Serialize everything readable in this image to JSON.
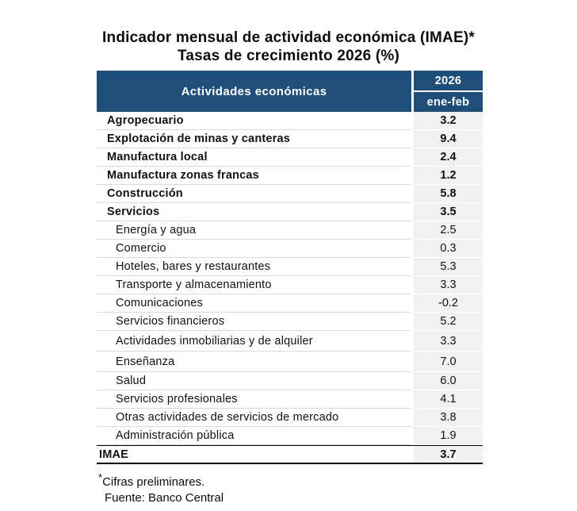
{
  "title": {
    "line1": "Indicador mensual de actividad económica (IMAE)*",
    "line2": "Tasas de crecimiento 2026 (%)"
  },
  "table": {
    "header": {
      "activities": "Actividades económicas",
      "year": "2026",
      "period": "ene-feb"
    },
    "rows": [
      {
        "label": "Agropecuario",
        "value": "3.2",
        "level": "main"
      },
      {
        "label": "Explotación de minas y canteras",
        "value": "9.4",
        "level": "main"
      },
      {
        "label": "Manufactura local",
        "value": "2.4",
        "level": "main"
      },
      {
        "label": "Manufactura zonas francas",
        "value": "1.2",
        "level": "main"
      },
      {
        "label": "Construcción",
        "value": "5.8",
        "level": "main"
      },
      {
        "label": "Servicios",
        "value": "3.5",
        "level": "main"
      },
      {
        "label": "Energía y agua",
        "value": "2.5",
        "level": "sub"
      },
      {
        "label": "Comercio",
        "value": "0.3",
        "level": "sub"
      },
      {
        "label": "Hoteles, bares y restaurantes",
        "value": "5.3",
        "level": "sub"
      },
      {
        "label": "Transporte y almacenamiento",
        "value": "3.3",
        "level": "sub"
      },
      {
        "label": "Comunicaciones",
        "value": "-0.2",
        "level": "sub"
      },
      {
        "label": "Servicios financieros",
        "value": "5.2",
        "level": "sub"
      },
      {
        "label": "Actividades inmobiliarias y de alquiler",
        "value": "3.3",
        "level": "sub"
      },
      {
        "label": "Enseñanza",
        "value": "7.0",
        "level": "sub"
      },
      {
        "label": "Salud",
        "value": "6.0",
        "level": "sub"
      },
      {
        "label": "Servicios profesionales",
        "value": "4.1",
        "level": "sub"
      },
      {
        "label": "Otras actividades de servicios de mercado",
        "value": "3.8",
        "level": "sub"
      },
      {
        "label": "Administración pública",
        "value": "1.9",
        "level": "sub"
      },
      {
        "label": "IMAE",
        "value": "3.7",
        "level": "total"
      }
    ]
  },
  "footnotes": {
    "asterisk": "*",
    "preliminary": "Cifras preliminares.",
    "source": "Fuente: Banco Central"
  },
  "colors": {
    "header_bg": "#1F4E79",
    "header_text": "#FFFFFF",
    "value_column_bg": "#F1F1F1",
    "row_separator": "#DADADA",
    "total_border": "#000000"
  },
  "chart_data": {
    "type": "table",
    "title": "Indicador mensual de actividad económica (IMAE)*",
    "subtitle": "Tasas de crecimiento 2026 (%)",
    "columns": [
      "Actividades económicas",
      "2026 ene-feb"
    ],
    "categories": [
      "Agropecuario",
      "Explotación de minas y canteras",
      "Manufactura local",
      "Manufactura zonas francas",
      "Construcción",
      "Servicios",
      "Energía y agua",
      "Comercio",
      "Hoteles, bares y restaurantes",
      "Transporte y almacenamiento",
      "Comunicaciones",
      "Servicios financieros",
      "Actividades inmobiliarias y de alquiler",
      "Enseñanza",
      "Salud",
      "Servicios profesionales",
      "Otras actividades de servicios de mercado",
      "Administración pública",
      "IMAE"
    ],
    "values": [
      3.2,
      9.4,
      2.4,
      1.2,
      5.8,
      3.5,
      2.5,
      0.3,
      5.3,
      3.3,
      -0.2,
      5.2,
      3.3,
      7.0,
      6.0,
      4.1,
      3.8,
      1.9,
      3.7
    ],
    "footnotes": [
      "*Cifras preliminares.",
      "Fuente: Banco Central"
    ]
  }
}
